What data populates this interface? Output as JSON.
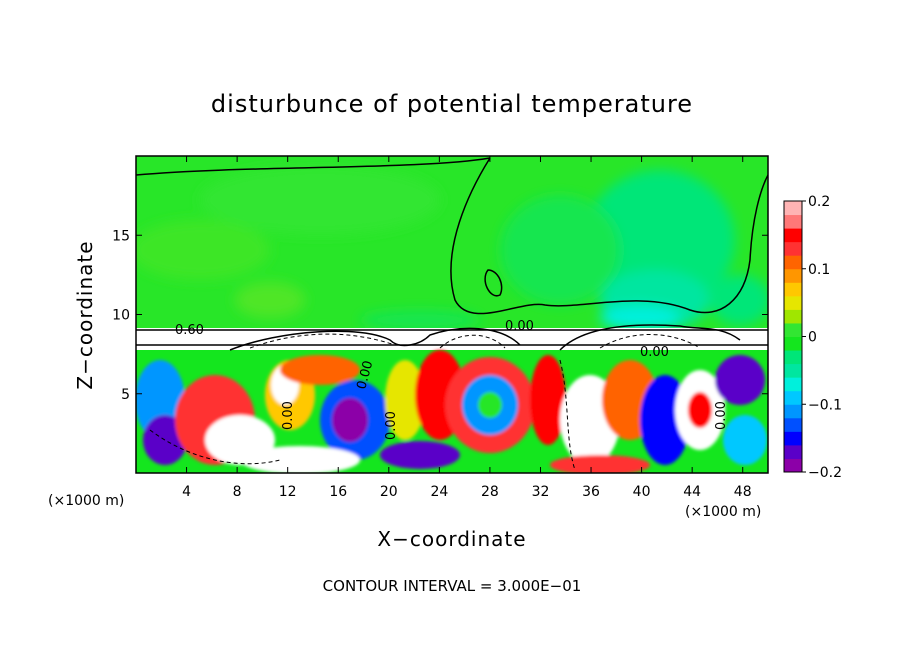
{
  "chart_data": {
    "type": "heatmap",
    "title": "disturbunce of potential temperature",
    "xlabel": "X−coordinate",
    "ylabel": "Z−coordinate",
    "x_unit_left": "(×1000 m)",
    "x_unit_right": "(×1000 m)",
    "xlim": [
      0,
      50
    ],
    "ylim": [
      0,
      20
    ],
    "x_ticks": [
      4,
      8,
      12,
      16,
      20,
      24,
      28,
      32,
      36,
      40,
      44,
      48
    ],
    "y_ticks": [
      5,
      10,
      15
    ],
    "colorbar": {
      "vmin": -0.2,
      "vmax": 0.2,
      "tick_values": [
        0.2,
        0.1,
        0,
        -0.1,
        -0.2
      ],
      "tick_labels": [
        "0.2",
        "0.1",
        "0",
        "−0.1",
        "−0.2"
      ],
      "colors": [
        "#8c00a8",
        "#5a00c8",
        "#0000ff",
        "#0050ff",
        "#0096ff",
        "#00c8ff",
        "#00f0dc",
        "#00e6a0",
        "#00e678",
        "#14e61e",
        "#32e632",
        "#a0e600",
        "#e6e600",
        "#ffc800",
        "#ff9600",
        "#ff6400",
        "#ff3232",
        "#ff0000",
        "#ff7878",
        "#ffb4b4"
      ]
    },
    "contour_labels": [
      "0.60",
      "0.00",
      "0.00",
      "0.00",
      "0.00",
      "0.00",
      "0.00"
    ],
    "contour_interval_text": "CONTOUR INTERVAL = 3.000E−01",
    "regions": {
      "upper_layer": {
        "z_range": [
          9.2,
          20
        ],
        "approx_value": 0.0
      },
      "stable_band": {
        "z_range": [
          8.0,
          9.2
        ]
      },
      "turbulent_layer": {
        "z_range": [
          0,
          8.0
        ]
      }
    }
  }
}
